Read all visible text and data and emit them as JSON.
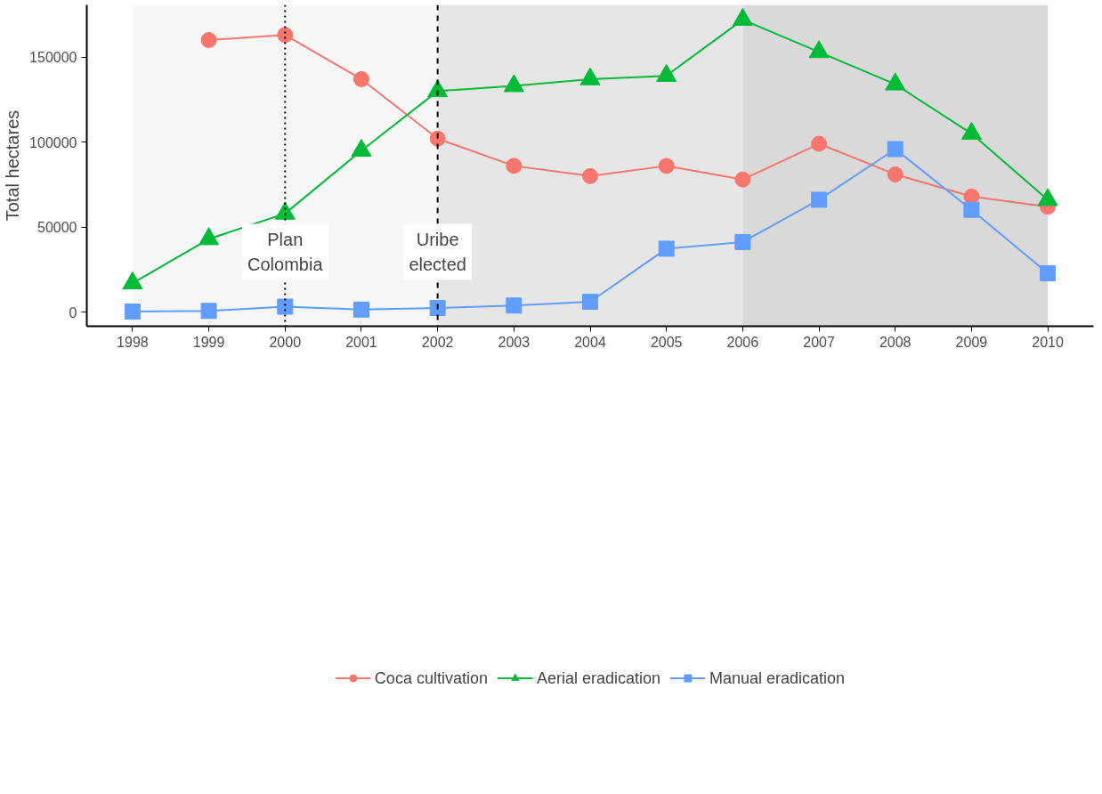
{
  "chart_data": {
    "type": "line",
    "ylabel": "Total hectares",
    "x": [
      1998,
      1999,
      2000,
      2001,
      2002,
      2003,
      2004,
      2005,
      2006,
      2007,
      2008,
      2009,
      2010
    ],
    "series": [
      {
        "name": "Coca cultivation",
        "color": "#f8766d",
        "marker": "circle",
        "values": [
          null,
          160000,
          163000,
          137000,
          102000,
          86000,
          80000,
          86000,
          78000,
          99000,
          81000,
          68000,
          62000
        ]
      },
      {
        "name": "Aerial eradication",
        "color": "#00ba38",
        "marker": "triangle",
        "values": [
          17000,
          43000,
          58000,
          95000,
          130000,
          133000,
          137000,
          139000,
          172000,
          153000,
          134000,
          105000,
          66000
        ]
      },
      {
        "name": "Manual eradication",
        "color": "#619cff",
        "marker": "square",
        "values": [
          300,
          700,
          3200,
          1500,
          2400,
          3900,
          6100,
          37300,
          41200,
          66100,
          95900,
          60200,
          22900
        ]
      }
    ],
    "xlim": [
      1997.4,
      2010.6
    ],
    "xticks": [
      1998,
      1999,
      2000,
      2001,
      2002,
      2003,
      2004,
      2005,
      2006,
      2007,
      2008,
      2009,
      2010
    ],
    "ylim": [
      -8300,
      180700
    ],
    "yticks": [
      0,
      50000,
      100000,
      150000
    ],
    "bands": [
      {
        "axis": "x",
        "from": 1998,
        "to": 2002,
        "color": "#f7f7f7"
      },
      {
        "axis": "x",
        "from": 2002,
        "to": 2006,
        "color": "#e6e6e6"
      },
      {
        "axis": "x",
        "from": 2006,
        "to": 2010,
        "color": "#d9d9d9"
      }
    ],
    "ref_lines": [
      {
        "axis": "x",
        "value": 2000,
        "label": "Plan\nColombia",
        "line_style": "dotted"
      },
      {
        "axis": "x",
        "value": 2002,
        "label": "Uribe\nelected",
        "line_style": "dashed"
      }
    ],
    "grid": false,
    "legend": "bottom",
    "line_style": "solid"
  }
}
